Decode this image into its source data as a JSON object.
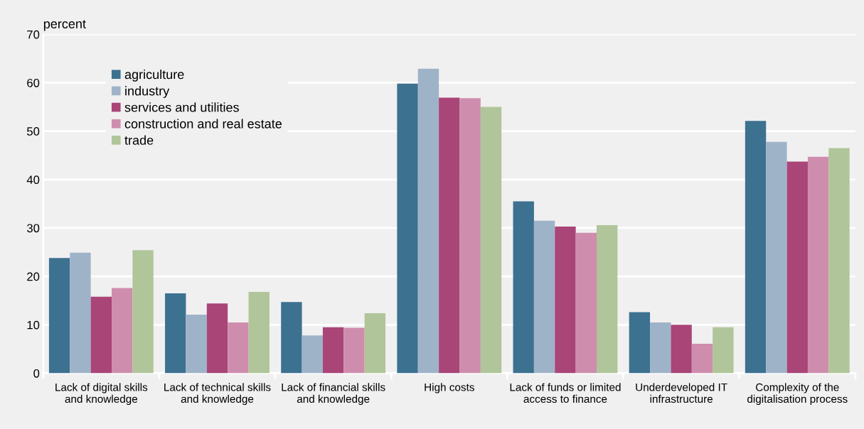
{
  "chart_data": {
    "type": "bar",
    "ylabel": "percent",
    "categories": [
      "Lack of digital skills\nand knowledge",
      "Lack of technical skills\nand knowledge",
      "Lack of financial skills\nand knowledge",
      "High costs",
      "Lack of funds or limited\naccess to finance",
      "Underdeveloped IT\ninfrastructure",
      "Complexity of the\ndigitalisation process"
    ],
    "series": [
      {
        "name": "agriculture",
        "color": "#3c7190",
        "values": [
          23.8,
          16.5,
          14.7,
          59.8,
          35.5,
          12.6,
          52.1
        ]
      },
      {
        "name": "industry",
        "color": "#9fb3c8",
        "values": [
          24.9,
          12.1,
          7.8,
          62.9,
          31.5,
          10.5,
          47.8
        ]
      },
      {
        "name": "services and utilities",
        "color": "#a94577",
        "values": [
          15.8,
          14.4,
          9.5,
          56.9,
          30.3,
          10.0,
          43.7
        ]
      },
      {
        "name": "construction and real estate",
        "color": "#cf8dad",
        "values": [
          17.6,
          10.5,
          9.4,
          56.8,
          29.0,
          6.1,
          44.7
        ]
      },
      {
        "name": "trade",
        "color": "#b0c599",
        "values": [
          25.4,
          16.8,
          12.4,
          55.0,
          30.6,
          9.5,
          46.5
        ]
      }
    ],
    "ylim": [
      0,
      70
    ],
    "yticks": [
      0,
      10,
      20,
      30,
      40,
      50,
      60,
      70
    ],
    "grid": "y",
    "legend": "top left"
  }
}
